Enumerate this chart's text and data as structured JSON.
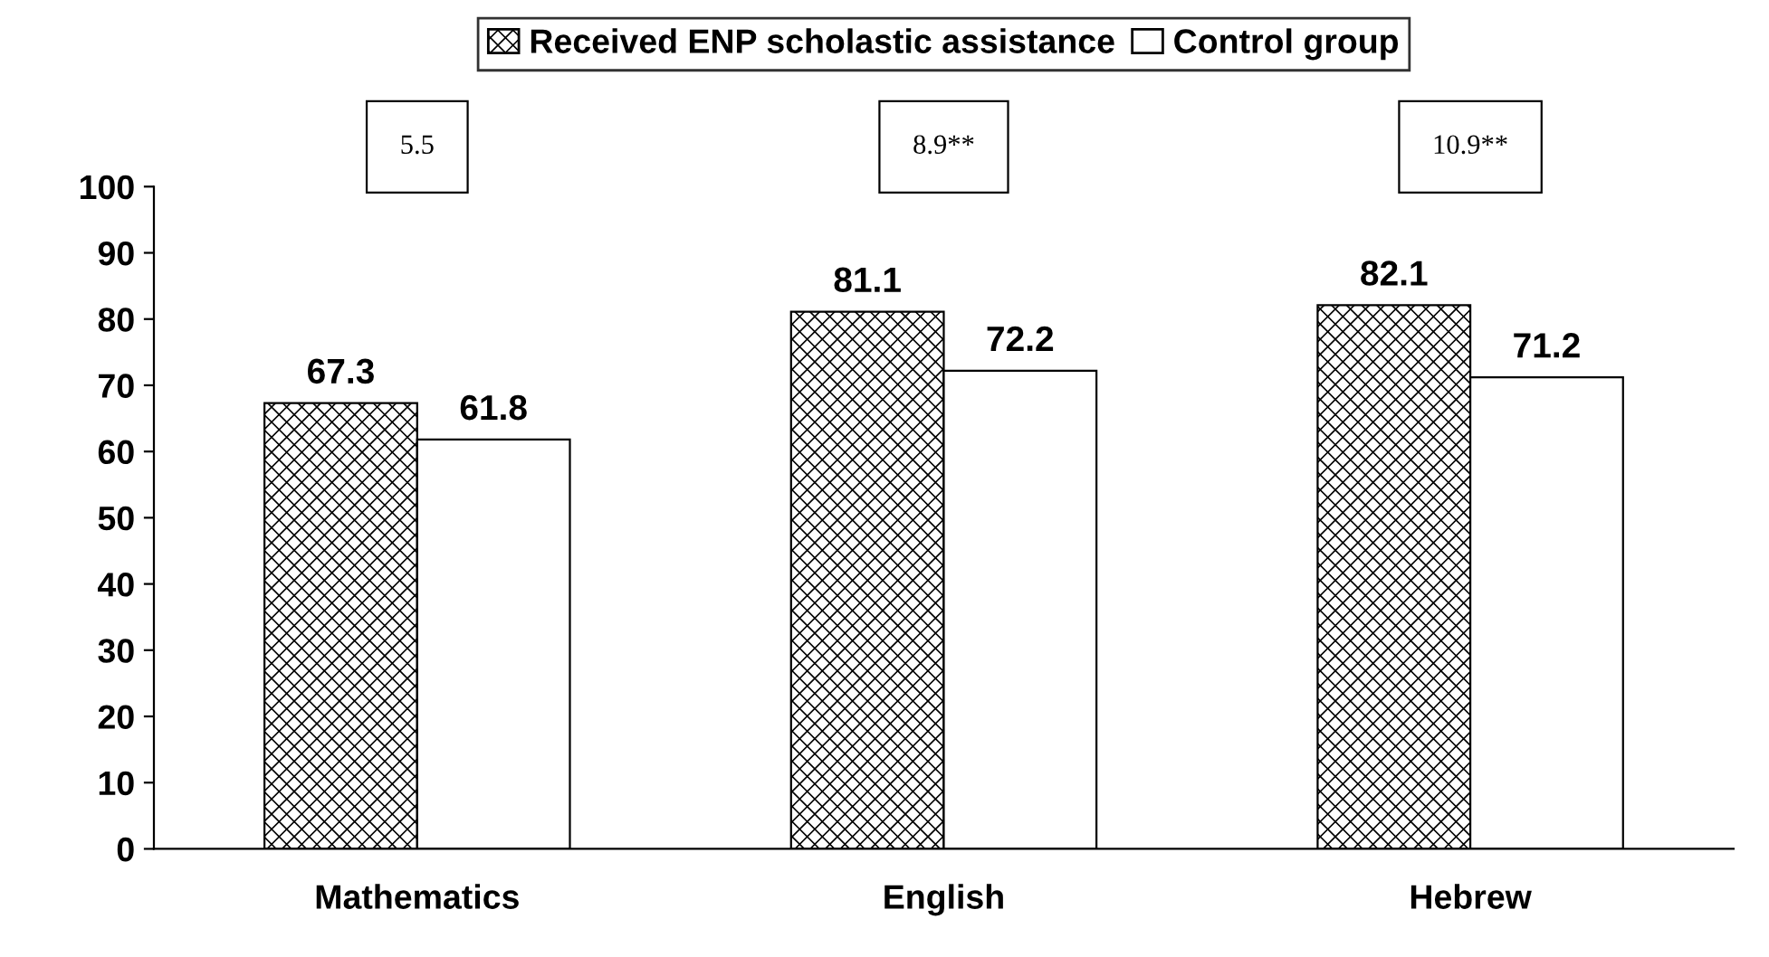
{
  "chart_data": {
    "type": "bar",
    "categories": [
      "Mathematics",
      "English",
      "Hebrew"
    ],
    "series": [
      {
        "name": "Received ENP scholastic assistance",
        "color": "#000000",
        "values": [
          67.3,
          81.1,
          82.1
        ]
      },
      {
        "name": "Control group",
        "color": "#ffffff",
        "values": [
          61.8,
          72.2,
          71.2
        ]
      }
    ],
    "ylim": [
      0,
      100
    ],
    "yticks": [
      0,
      10,
      20,
      30,
      40,
      50,
      60,
      70,
      80,
      90,
      100
    ],
    "data_labels": true,
    "grid": false,
    "legend": "top",
    "annotations": [
      "5.5",
      "8.9**",
      "10.9**"
    ]
  }
}
